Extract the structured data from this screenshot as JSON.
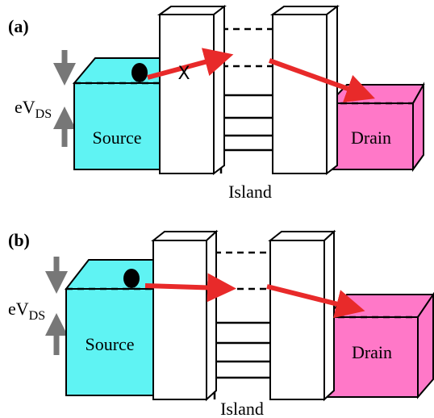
{
  "panels": [
    {
      "label": "(a)",
      "energy_label": {
        "main": "eV",
        "sub": "DS"
      },
      "source": "Source",
      "drain": "Drain",
      "island": "Island",
      "blocked_mark": "X"
    },
    {
      "label": "(b)",
      "energy_label": {
        "main": "eV",
        "sub": "DS"
      },
      "source": "Source",
      "drain": "Drain",
      "island": "Island"
    }
  ]
}
